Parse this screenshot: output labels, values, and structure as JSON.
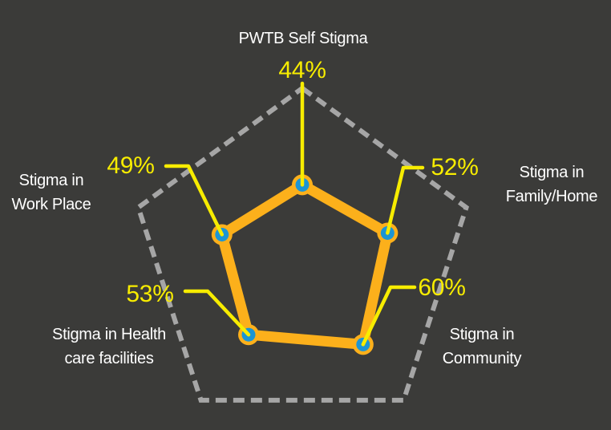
{
  "chart_data": {
    "type": "radar",
    "max_value": 100,
    "grid": {
      "shape": "pentagon",
      "sides": 5,
      "style": "dashed",
      "rings": 1
    },
    "legend": "none",
    "axes": [
      {
        "id": "self",
        "label_lines": [
          "PWTB Self Stigma"
        ],
        "value": 44,
        "display": "44%"
      },
      {
        "id": "family",
        "label_lines": [
          "Stigma in",
          "Family/Home"
        ],
        "value": 52,
        "display": "52%"
      },
      {
        "id": "community",
        "label_lines": [
          "Stigma in",
          "Community"
        ],
        "value": 60,
        "display": "60%"
      },
      {
        "id": "health",
        "label_lines": [
          "Stigma in Health",
          "care facilities"
        ],
        "value": 53,
        "display": "53%"
      },
      {
        "id": "work",
        "label_lines": [
          "Stigma in",
          "Work Place"
        ],
        "value": 49,
        "display": "49%"
      }
    ],
    "colors": {
      "background": "#3b3b39",
      "grid": "#a6a6a6",
      "series_stroke": "#fcb01b",
      "marker_fill": "#1c95d4",
      "marker_ring": "#fcb01b",
      "callout_line": "#f7ec00",
      "value_text": "#f7ec00",
      "label_text": "#ffffff"
    }
  }
}
